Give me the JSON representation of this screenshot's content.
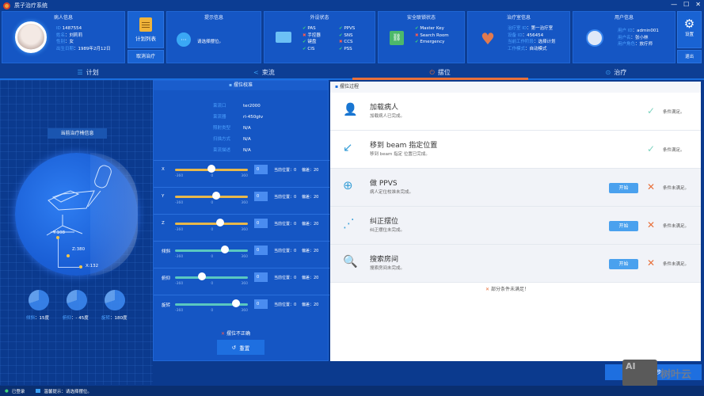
{
  "window": {
    "title": "质子治疗系统",
    "controls": [
      "—",
      "☐",
      "✕"
    ]
  },
  "patient": {
    "title": "病人信息",
    "fields": [
      {
        "label": "ID",
        "value": "1487554"
      },
      {
        "label": "姓名",
        "value": "刘莉莉"
      },
      {
        "label": "性别",
        "value": "女"
      },
      {
        "label": "出生日期",
        "value": "1989年2月12日"
      }
    ]
  },
  "plan_buttons": {
    "plan_list": "计划列表",
    "cancel_treatment": "取消治疗"
  },
  "hint": {
    "title": "提示信息",
    "message": "请选择摆位。"
  },
  "peripherals": {
    "title": "外设状态",
    "items": [
      {
        "name": "PAS",
        "ok": true
      },
      {
        "name": "PPVS",
        "ok": true
      },
      {
        "name": "手控器",
        "ok": false
      },
      {
        "name": "SNS",
        "ok": true
      },
      {
        "name": "键盘",
        "ok": true
      },
      {
        "name": "CCS",
        "ok": false
      },
      {
        "name": "CIS",
        "ok": true
      },
      {
        "name": "PSS",
        "ok": true
      }
    ]
  },
  "safety": {
    "title": "安全联锁状态",
    "items": [
      {
        "name": "Master Key",
        "ok": true
      },
      {
        "name": "Search Room",
        "ok": false
      },
      {
        "name": "Emergency",
        "ok": true
      }
    ]
  },
  "room": {
    "title": "治疗室信息",
    "fields": [
      {
        "label": "治疗室 ID",
        "value": "第一治疗室"
      },
      {
        "label": "设备 ID",
        "value": "456454"
      },
      {
        "label": "当前工作阶段",
        "value": "选择计划"
      },
      {
        "label": "工作模式",
        "value": "自动模式"
      }
    ]
  },
  "user": {
    "title": "用户信息",
    "fields": [
      {
        "label": "用户 ID",
        "value": "admin001"
      },
      {
        "label": "用户名",
        "value": "张小林"
      },
      {
        "label": "用户角色",
        "value": "放疗师"
      }
    ]
  },
  "side_buttons": {
    "settings": "设置",
    "logout": "退出"
  },
  "tabs": [
    {
      "label": "计划",
      "icon": "list-icon",
      "active": false
    },
    {
      "label": "束流",
      "icon": "beam-icon",
      "active": false
    },
    {
      "label": "摆位",
      "icon": "power-icon",
      "active": true
    },
    {
      "label": "治疗",
      "icon": "target-icon",
      "active": false
    }
  ],
  "left": {
    "current_info": "当前治疗椅信息",
    "axes": {
      "y": "Y:108",
      "z": "Z:380",
      "x": "X:132"
    },
    "dials": [
      {
        "label": "倾斜",
        "value": "15度"
      },
      {
        "label": "俯仰",
        "value": "- 45度"
      },
      {
        "label": "旋转",
        "value": "180度"
      }
    ]
  },
  "calibration": {
    "title": "摆位校准",
    "info": [
      {
        "label": "束流口",
        "value": "ter2000"
      },
      {
        "label": "束流器",
        "value": "rl-450gtv"
      },
      {
        "label": "照射类型",
        "value": "N/A"
      },
      {
        "label": "扫描方式",
        "value": "N/A"
      },
      {
        "label": "束流描述",
        "value": "N/A"
      }
    ],
    "sliders": [
      {
        "name": "X",
        "min": "-360",
        "mid": "0",
        "max": "360",
        "value": "0",
        "position": "当前位置：0",
        "deviation": "偏差：20",
        "knob_pct": 50,
        "color": "#e8b84a"
      },
      {
        "name": "Y",
        "min": "-360",
        "mid": "0",
        "max": "360",
        "value": "0",
        "position": "当前位置：0",
        "deviation": "偏差：20",
        "knob_pct": 57,
        "color": "#e8b84a"
      },
      {
        "name": "Z",
        "min": "-360",
        "mid": "0",
        "max": "360",
        "value": "0",
        "position": "当前位置：0",
        "deviation": "偏差：20",
        "knob_pct": 62,
        "color": "#e8b84a"
      },
      {
        "name": "倾斜",
        "min": "-360",
        "mid": "0",
        "max": "360",
        "value": "0",
        "position": "当前位置：0",
        "deviation": "偏差：20",
        "knob_pct": 68,
        "color": "#5ac8c0"
      },
      {
        "name": "俯仰",
        "min": "-360",
        "mid": "0",
        "max": "360",
        "value": "0",
        "position": "当前位置：0",
        "deviation": "偏差：20",
        "knob_pct": 37,
        "color": "#5ac8c0"
      },
      {
        "name": "旋转",
        "min": "-360",
        "mid": "0",
        "max": "360",
        "value": "0",
        "position": "当前位置：0",
        "deviation": "偏差：20",
        "knob_pct": 84,
        "color": "#5ac8c0"
      }
    ],
    "warning": "摆位不正确",
    "reset": "重置"
  },
  "process": {
    "title": "摆位过程",
    "steps": [
      {
        "title": "加载病人",
        "sub": "加载病人已完成。",
        "done": true,
        "cond": "条件满足。",
        "start": ""
      },
      {
        "title": "移到 beam 指定位置",
        "sub": "移到 beam 指定 位置已完成。",
        "done": true,
        "cond": "条件满足。",
        "start": ""
      },
      {
        "title": "做 PPVS",
        "sub": "病人定位校准未完成。",
        "done": false,
        "cond": "条件未满足。",
        "start": "开始"
      },
      {
        "title": "纠正摆位",
        "sub": "纠正摆位未完成。",
        "done": false,
        "cond": "条件未满足。",
        "start": "开始"
      },
      {
        "title": "搜索房间",
        "sub": "搜索房间未完成。",
        "done": false,
        "cond": "条件未满足。",
        "start": "开始"
      }
    ],
    "summary": "部分条件未满足！"
  },
  "next_button": "下一步",
  "status": {
    "login": "已登录",
    "hint": "温馨提示：请选择摆位。"
  },
  "watermark": {
    "logo": "AI",
    "text": "树叶云"
  },
  "colors": {
    "accent": "#e8703a",
    "ok": "#3ed17a",
    "error": "#ff5a4d",
    "primary": "#1556c4"
  }
}
